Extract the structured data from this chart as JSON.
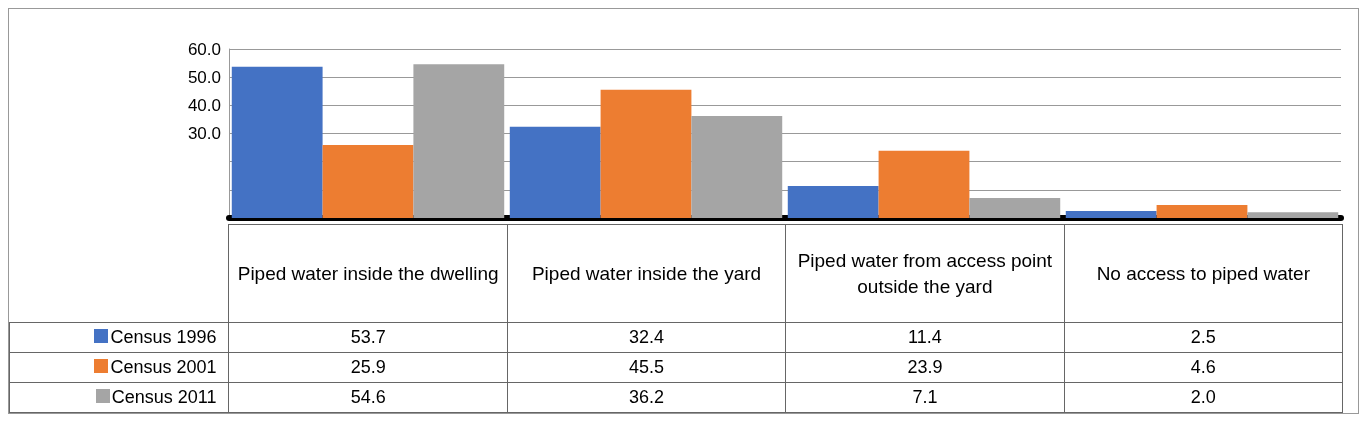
{
  "chart_data": {
    "type": "bar",
    "categories": [
      "Piped water inside the dwelling",
      "Piped water inside the yard",
      "Piped water from access point outside the yard",
      "No access to piped water"
    ],
    "series": [
      {
        "name": "Census 1996",
        "color": "#4472c4",
        "values": [
          53.7,
          32.4,
          11.4,
          2.5
        ],
        "value_labels": [
          "53.7",
          "32.4",
          "11.4",
          "2.5"
        ]
      },
      {
        "name": "Census 2001",
        "color": "#ed7d31",
        "values": [
          25.9,
          45.5,
          23.9,
          4.6
        ],
        "value_labels": [
          "25.9",
          "45.5",
          "23.9",
          "4.6"
        ]
      },
      {
        "name": "Census 2011",
        "color": "#a5a5a5",
        "values": [
          54.6,
          36.2,
          7.1,
          2.0
        ],
        "value_labels": [
          "54.6",
          "36.2",
          "7.1",
          "2.0"
        ]
      }
    ],
    "ylim": [
      0,
      60
    ],
    "yticks": [
      {
        "value": 0,
        "label": null
      },
      {
        "value": 10,
        "label": null
      },
      {
        "value": 20,
        "label": null
      },
      {
        "value": 30,
        "label": "30.0"
      },
      {
        "value": 40,
        "label": "40.0"
      },
      {
        "value": 50,
        "label": "50.0"
      },
      {
        "value": 60,
        "label": "60.0"
      }
    ],
    "grid": "y",
    "legend": "bottom left"
  }
}
